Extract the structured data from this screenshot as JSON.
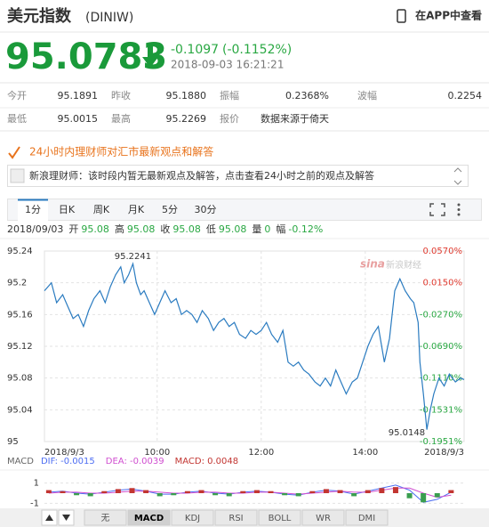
{
  "header": {
    "title": "美元指数",
    "code": "(DINIW)",
    "app_link": "在APP中查看"
  },
  "quote": {
    "price": "95.0783",
    "change": "-0.1097",
    "change_pct": "(-0.1152%)",
    "time": "2018-09-03 16:21:21"
  },
  "stats": [
    [
      {
        "label": "今开",
        "value": "95.1891"
      },
      {
        "label": "昨收",
        "value": "95.1880"
      },
      {
        "label": "振幅",
        "value": "0.2368%"
      },
      {
        "label": "波幅",
        "value": "0.2254"
      }
    ],
    [
      {
        "label": "最低",
        "value": "95.0015"
      },
      {
        "label": "最高",
        "value": "95.2269"
      },
      {
        "label": "报价",
        "value": "数据来源于倚天"
      }
    ]
  ],
  "advisor": {
    "banner": "24小时内理财师对汇市最新观点和解答",
    "message": "新浪理财师：该时段内暂无最新观点及解答，点击查看24小时之前的观点及解答"
  },
  "tabs": [
    "1分",
    "日K",
    "周K",
    "月K",
    "5分",
    "30分"
  ],
  "info": {
    "date": "2018/09/03",
    "items": [
      {
        "label": "开",
        "value": "95.08"
      },
      {
        "label": "高",
        "value": "95.08"
      },
      {
        "label": "收",
        "value": "95.08"
      },
      {
        "label": "低",
        "value": "95.08"
      },
      {
        "label": "量",
        "value": "0"
      },
      {
        "label": "幅",
        "value": "-0.12%"
      }
    ]
  },
  "watermark": {
    "logo": "sina",
    "text": "新浪财经"
  },
  "indicator_tabs": [
    "无",
    "MACD",
    "KDJ",
    "RSI",
    "BOLL",
    "WR",
    "DMI"
  ],
  "chart_data": [
    {
      "type": "line",
      "x": [
        470,
        478,
        484,
        491,
        497,
        503,
        509,
        515,
        521,
        527,
        534,
        540,
        546,
        552,
        558,
        562,
        567,
        572,
        576,
        581,
        585,
        591,
        597,
        603,
        609,
        616,
        622,
        628,
        634,
        640,
        646,
        652,
        659,
        665,
        671,
        677,
        683,
        689,
        695,
        702,
        708,
        714,
        720,
        726,
        732,
        739,
        745,
        751,
        757,
        763,
        769,
        775,
        782,
        788,
        794,
        800,
        806,
        812,
        818,
        825,
        831,
        837,
        843,
        849,
        855,
        862,
        868,
        874,
        880,
        886,
        892,
        896,
        901,
        903,
        907,
        911,
        915,
        919,
        925,
        931,
        937,
        944,
        950,
        954
      ],
      "values": [
        95.19,
        95.2,
        95.175,
        95.185,
        95.17,
        95.155,
        95.16,
        95.145,
        95.165,
        95.18,
        95.19,
        95.175,
        95.195,
        95.21,
        95.22,
        95.2,
        95.21,
        95.224,
        95.2,
        95.185,
        95.19,
        95.175,
        95.16,
        95.175,
        95.19,
        95.175,
        95.18,
        95.16,
        95.165,
        95.16,
        95.15,
        95.165,
        95.155,
        95.14,
        95.15,
        95.155,
        95.145,
        95.15,
        95.135,
        95.13,
        95.14,
        95.135,
        95.14,
        95.15,
        95.135,
        95.125,
        95.14,
        95.1,
        95.095,
        95.1,
        95.09,
        95.085,
        95.075,
        95.07,
        95.08,
        95.07,
        95.09,
        95.075,
        95.06,
        95.075,
        95.08,
        95.1,
        95.12,
        95.135,
        95.145,
        95.1,
        95.13,
        95.19,
        95.205,
        95.19,
        95.18,
        95.175,
        95.15,
        95.1,
        95.06,
        95.015,
        95.04,
        95.06,
        95.08,
        95.07,
        95.085,
        95.075,
        95.08,
        95.078
      ],
      "color": "#2a7bc0",
      "xlim": [
        470,
        954
      ],
      "xticks": [
        {
          "value": 470,
          "label": "2018/9/3"
        },
        {
          "value": 600,
          "label": "10:00"
        },
        {
          "value": 720,
          "label": "12:00"
        },
        {
          "value": 840,
          "label": "14:00"
        },
        {
          "value": 954,
          "label": "2018/9/3"
        }
      ],
      "ylim": [
        95,
        95.24
      ],
      "yticks": [
        95.24,
        95.2,
        95.16,
        95.12,
        95.08,
        95.04,
        95
      ],
      "y2lim": [
        -0.1951,
        0.057
      ],
      "y2ticks": [
        {
          "value": 0.057,
          "label": "0.0570%"
        },
        {
          "value": 0.015,
          "label": "0.0150%"
        },
        {
          "value": -0.027,
          "label": "-0.0270%"
        },
        {
          "value": -0.069,
          "label": "-0.0690%"
        },
        {
          "value": -0.111,
          "label": "-0.1110%"
        },
        {
          "value": -0.1531,
          "label": "-0.1531%"
        },
        {
          "value": -0.1951,
          "label": "-0.1951%"
        }
      ],
      "grid": true,
      "annotations": [
        {
          "label": "95.2241",
          "value": 95.2241,
          "x": 572
        },
        {
          "label": "95.0148",
          "value": 95.0148,
          "x": 911
        }
      ]
    },
    {
      "type": "macd",
      "title": "MACD",
      "x": [
        475,
        491,
        507,
        523,
        539,
        555,
        571,
        587,
        603,
        619,
        635,
        651,
        667,
        683,
        699,
        715,
        731,
        747,
        763,
        779,
        795,
        811,
        827,
        843,
        859,
        875,
        891,
        907,
        923,
        939
      ],
      "series": [
        {
          "name": "DIF: -0.0015",
          "kind": "line",
          "color": "#4e6ef2",
          "values": [
            0.1,
            0.2,
            0,
            -0.1,
            0.1,
            0.3,
            0.4,
            0.2,
            -0.1,
            -0.1,
            0.1,
            0.2,
            0,
            -0.1,
            0.1,
            0.2,
            0.1,
            -0.1,
            -0.2,
            0.1,
            0.3,
            0.2,
            -0.1,
            0.2,
            0.5,
            0.8,
            0.3,
            -0.9,
            -0.6,
            0.1
          ]
        },
        {
          "name": "DEA: -0.0039",
          "kind": "line",
          "color": "#d04fd0",
          "values": [
            0,
            0.1,
            0.1,
            0,
            0,
            0.1,
            0.2,
            0.2,
            0.1,
            0,
            0,
            0.1,
            0.1,
            0,
            0,
            0.1,
            0.1,
            0,
            -0.1,
            0,
            0.1,
            0.2,
            0.1,
            0.1,
            0.3,
            0.5,
            0.5,
            0,
            -0.4,
            -0.2
          ]
        },
        {
          "name": "MACD: 0.0048",
          "kind": "bar",
          "color": "#c23531",
          "negative_color": "#3a9e4f",
          "values": [
            0.3,
            0.2,
            -0.2,
            -0.3,
            0.2,
            0.4,
            0.5,
            0.3,
            -0.3,
            -0.2,
            0.2,
            0.3,
            -0.2,
            -0.3,
            0.2,
            0.3,
            0.2,
            -0.2,
            -0.3,
            0.2,
            0.4,
            0.3,
            -0.3,
            0.3,
            0.5,
            0.6,
            -0.5,
            -0.9,
            -0.4,
            0.3
          ]
        }
      ],
      "xlim": [
        470,
        954
      ],
      "ylim": [
        -1.4,
        1.4
      ],
      "yticks": [
        1,
        -1
      ],
      "grid": true
    }
  ]
}
